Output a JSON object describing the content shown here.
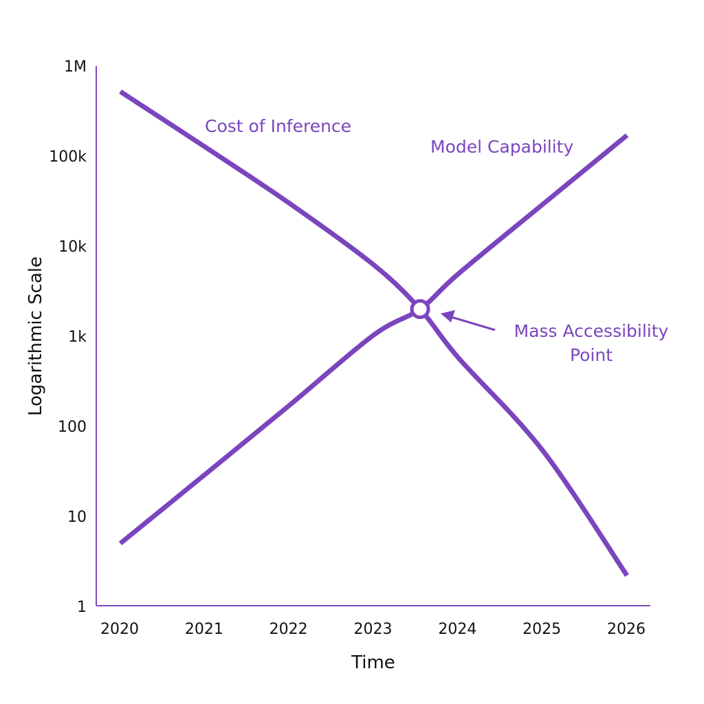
{
  "chart_data": {
    "type": "line",
    "title": "",
    "xlabel": "Time",
    "ylabel": "Logarithmic Scale",
    "y_scale": "log",
    "ylim": [
      1,
      1000000
    ],
    "xlim": [
      2020,
      2026
    ],
    "grid": false,
    "x_ticks": [
      "2020",
      "2021",
      "2022",
      "2023",
      "2024",
      "2025",
      "2026"
    ],
    "y_ticks": [
      {
        "value": 1,
        "label": "1"
      },
      {
        "value": 10,
        "label": "10"
      },
      {
        "value": 100,
        "label": "100"
      },
      {
        "value": 1000,
        "label": "1k"
      },
      {
        "value": 10000,
        "label": "10k"
      },
      {
        "value": 100000,
        "label": "100k"
      },
      {
        "value": 1000000,
        "label": "1M"
      }
    ],
    "color": "#7b45be",
    "series": [
      {
        "name": "Cost of Inference",
        "x": [
          2020,
          2021,
          2022,
          2023,
          2023.55,
          2024,
          2025,
          2026
        ],
        "y": [
          520000,
          127000,
          30000,
          6200,
          2000,
          580,
          54,
          2.2
        ]
      },
      {
        "name": "Model Capability",
        "x": [
          2020,
          2021,
          2022,
          2023,
          2023.55,
          2024,
          2025,
          2026
        ],
        "y": [
          5,
          29,
          170,
          1030,
          2000,
          4900,
          29000,
          170000
        ]
      }
    ],
    "annotations": [
      {
        "text_lines": [
          "Mass Accessibility",
          "Point"
        ],
        "x": 2023.55,
        "y": 2000
      }
    ]
  }
}
